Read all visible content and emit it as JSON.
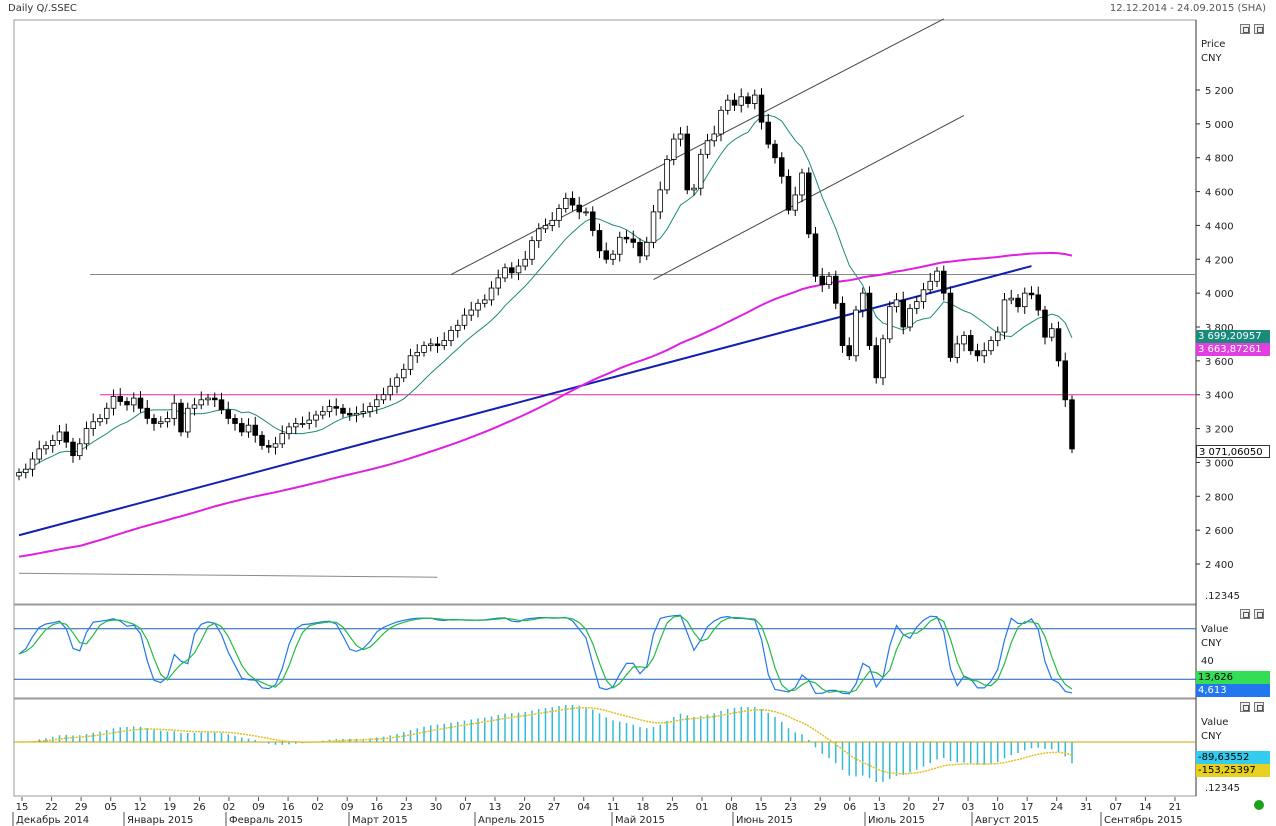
{
  "header": {
    "title": "Daily Q/.SSEC",
    "range": "12.12.2014 - 24.09.2015 (SHA)"
  },
  "price_panel": {
    "axis_title": "Price",
    "axis_unit": "CNY",
    "counter": ".12345",
    "badges": [
      {
        "text": "3 699,20957",
        "color": "#1a8a7a",
        "textcolor": "#ffffff"
      },
      {
        "text": "3 663,87261",
        "color": "#e040e0",
        "textcolor": "#ffffff"
      },
      {
        "text": "3 071,06050",
        "color": "#ffffff",
        "textcolor": "#000000"
      }
    ]
  },
  "stoch_panel": {
    "axis_title": "Value",
    "axis_unit": "CNY",
    "tick": "40",
    "badges": [
      {
        "text": "13,626",
        "color": "#33dd55",
        "textcolor": "#000000"
      },
      {
        "text": "4,613",
        "color": "#2277ee",
        "textcolor": "#ffffff"
      }
    ]
  },
  "macd_panel": {
    "axis_title": "Value",
    "axis_unit": "CNY",
    "counter": ".12345",
    "badges": [
      {
        "text": "-89,63552",
        "color": "#33ccee",
        "textcolor": "#000000"
      },
      {
        "text": "-153,25397",
        "color": "#e8d020",
        "textcolor": "#000000"
      }
    ]
  },
  "chart_data": {
    "type": "candlestick",
    "title": "Daily Q/.SSEC",
    "ylabel": "Price CNY",
    "ylim": [
      2300,
      5300
    ],
    "yticks": [
      2400,
      2600,
      2800,
      3000,
      3200,
      3400,
      3600,
      3800,
      4000,
      4200,
      4400,
      4600,
      4800,
      5000,
      5200
    ],
    "ytick_labels": [
      "2 400",
      "2 600",
      "2 800",
      "3 000",
      "3 200",
      "3 400",
      "3 600",
      "3 800",
      "4 000",
      "4 200",
      "4 400",
      "4 600",
      "4 800",
      "5 000",
      "5 200"
    ],
    "x_day_labels": [
      "15",
      "22",
      "29",
      "05",
      "12",
      "19",
      "26",
      "02",
      "09",
      "16",
      "02",
      "09",
      "16",
      "23",
      "30",
      "07",
      "13",
      "20",
      "27",
      "04",
      "11",
      "18",
      "25",
      "01",
      "08",
      "15",
      "23",
      "29",
      "06",
      "13",
      "20",
      "27",
      "03",
      "10",
      "17",
      "24",
      "31",
      "07",
      "14",
      "21"
    ],
    "x_month_labels": [
      "Декабрь 2014",
      "Январь 2015",
      "Февраль 2015",
      "Март 2015",
      "Апрель 2015",
      "Май 2015",
      "Июнь 2015",
      "Июль 2015",
      "Август 2015",
      "Сентябрь 2015"
    ],
    "close": [
      2940,
      2960,
      3020,
      3080,
      3100,
      3130,
      3180,
      3120,
      3040,
      3110,
      3200,
      3240,
      3260,
      3320,
      3390,
      3360,
      3340,
      3380,
      3320,
      3260,
      3230,
      3240,
      3260,
      3350,
      3180,
      3320,
      3340,
      3370,
      3380,
      3370,
      3310,
      3260,
      3230,
      3180,
      3220,
      3160,
      3100,
      3090,
      3110,
      3170,
      3210,
      3230,
      3230,
      3250,
      3280,
      3300,
      3330,
      3320,
      3290,
      3280,
      3290,
      3300,
      3330,
      3370,
      3400,
      3450,
      3500,
      3550,
      3630,
      3650,
      3690,
      3700,
      3690,
      3720,
      3780,
      3810,
      3870,
      3900,
      3940,
      3960,
      4030,
      4090,
      4150,
      4120,
      4160,
      4200,
      4310,
      4380,
      4400,
      4430,
      4500,
      4560,
      4520,
      4480,
      4480,
      4370,
      4250,
      4200,
      4230,
      4330,
      4320,
      4300,
      4220,
      4300,
      4480,
      4610,
      4790,
      4910,
      4940,
      4610,
      4620,
      4820,
      4900,
      4940,
      5080,
      5140,
      5110,
      5160,
      5120,
      5170,
      5010,
      4880,
      4800,
      4690,
      4490,
      4580,
      4710,
      4350,
      4100,
      4050,
      4100,
      3940,
      3690,
      3630,
      3900,
      4000,
      3690,
      3500,
      3730,
      3920,
      3960,
      3800,
      3910,
      3950,
      4020,
      4070,
      4130,
      4000,
      3620,
      3700,
      3750,
      3660,
      3630,
      3660,
      3720,
      3770,
      3960,
      3970,
      3920,
      4000,
      3990,
      3900,
      3740,
      3790,
      3600,
      3370,
      3080
    ],
    "series": [
      {
        "name": "SMA short",
        "color": "#1a8a7a"
      },
      {
        "name": "SMA long",
        "color": "#e020e0"
      }
    ],
    "horizontal_levels": [
      {
        "value": 4110,
        "color": "#888888"
      },
      {
        "value": 3400,
        "color": "#ee22aa"
      }
    ],
    "trendlines": [
      {
        "from": [
          0,
          2570
        ],
        "to": [
          150,
          4160
        ],
        "color": "#1020b0"
      },
      {
        "from": [
          64,
          4110
        ],
        "to": [
          137,
          5620
        ],
        "color": "#444444"
      },
      {
        "from": [
          94,
          4080
        ],
        "to": [
          140,
          5050
        ],
        "color": "#444444"
      },
      {
        "from": [
          0,
          2345
        ],
        "to": [
          62,
          2322
        ],
        "color": "#888888"
      }
    ],
    "stochastic": {
      "levels": [
        80,
        20
      ],
      "tick": 40,
      "last_k": 13.626,
      "last_d": 4.613
    },
    "macd": {
      "last_macd": -89.63552,
      "last_signal": -153.25397
    }
  }
}
